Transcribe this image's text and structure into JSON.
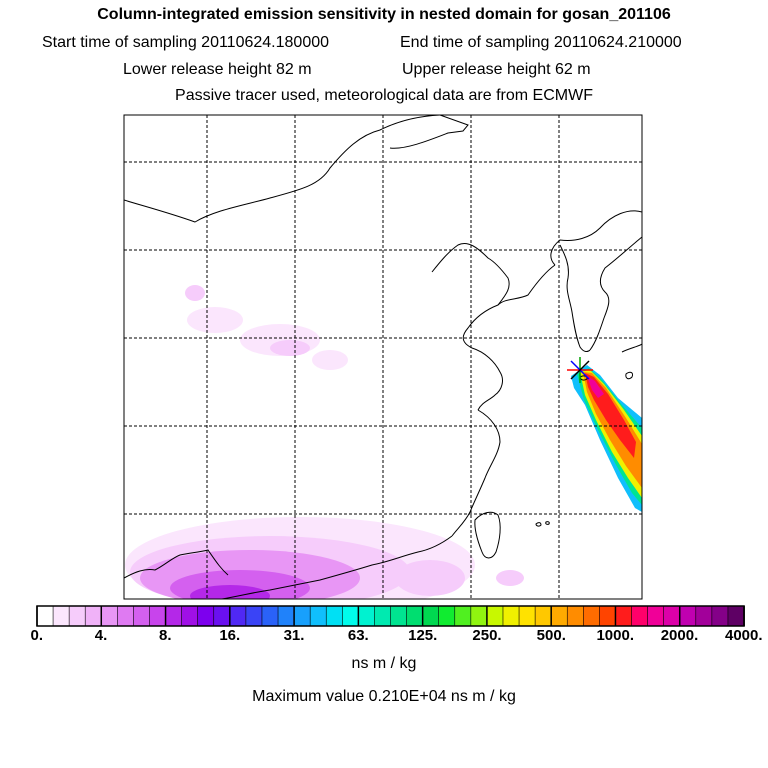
{
  "header": {
    "title": "Column-integrated emission sensitivity in nested domain for gosan_201106",
    "start_time": "Start time of sampling 20110624.180000",
    "end_time": "End time of sampling 20110624.210000",
    "lower_height": "Lower release height   82 m",
    "upper_height": "Upper release height   62 m",
    "tracer_note": "Passive tracer used, meteorological data are from ECMWF"
  },
  "chart_data": {
    "type": "heatmap",
    "title": "Column-integrated emission sensitivity in nested domain for gosan_201106",
    "colorbar": {
      "unit": "ns m / kg",
      "tick_labels": [
        "0.",
        "4.",
        "8.",
        "16.",
        "31.",
        "63.",
        "125.",
        "250.",
        "500.",
        "1000.",
        "2000.",
        "4000."
      ],
      "tick_values": [
        0,
        4,
        8,
        16,
        31,
        63,
        125,
        250,
        500,
        1000,
        2000,
        4000
      ],
      "colors": [
        "#ffffff",
        "#fbe6fd",
        "#f6ccfb",
        "#f0b2f8",
        "#e896f5",
        "#df7af2",
        "#d460ef",
        "#c844ec",
        "#b428e8",
        "#a010e6",
        "#7d00ee",
        "#6a10f0",
        "#5028f4",
        "#3a44f6",
        "#2a62f8",
        "#2082fa",
        "#18a0fc",
        "#10bffc",
        "#00e0f4",
        "#00fcec",
        "#00f2d0",
        "#00eab0",
        "#00e490",
        "#00de70",
        "#00d850",
        "#10ec30",
        "#50f020",
        "#90f410",
        "#c8f800",
        "#f0f000",
        "#ffe200",
        "#ffc800",
        "#ffaa00",
        "#ff8c00",
        "#ff6c00",
        "#ff4400",
        "#ff1c1c",
        "#ff006a",
        "#f00098",
        "#dc00a8",
        "#c000b0",
        "#a2009a",
        "#840088",
        "#5e0064"
      ]
    },
    "maximum": {
      "value": 2100,
      "label": "Maximum value  0.210E+04 ns m / kg"
    },
    "release_site": "gosan"
  }
}
